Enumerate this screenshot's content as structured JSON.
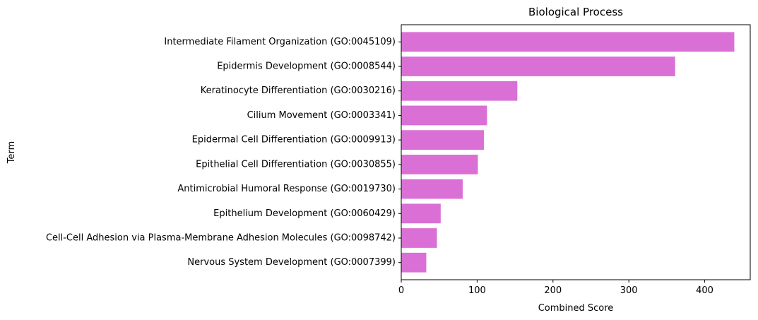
{
  "chart_data": {
    "type": "bar",
    "orientation": "horizontal",
    "title": "Biological Process",
    "xlabel": "Combined Score",
    "ylabel": "Term",
    "xlim": [
      0,
      460
    ],
    "xticks": [
      0,
      100,
      200,
      300,
      400
    ],
    "grid": false,
    "bar_color": "#da70d6",
    "categories": [
      "Intermediate Filament Organization (GO:0045109)",
      "Epidermis Development (GO:0008544)",
      "Keratinocyte Differentiation (GO:0030216)",
      "Cilium Movement (GO:0003341)",
      "Epidermal Cell Differentiation (GO:0009913)",
      "Epithelial Cell Differentiation (GO:0030855)",
      "Antimicrobial Humoral Response (GO:0019730)",
      "Epithelium Development (GO:0060429)",
      "Cell-Cell Adhesion via Plasma-Membrane Adhesion Molecules (GO:0098742)",
      "Nervous System Development (GO:0007399)"
    ],
    "values": [
      439,
      361,
      153,
      113,
      109,
      101,
      81,
      52,
      47,
      33
    ]
  }
}
